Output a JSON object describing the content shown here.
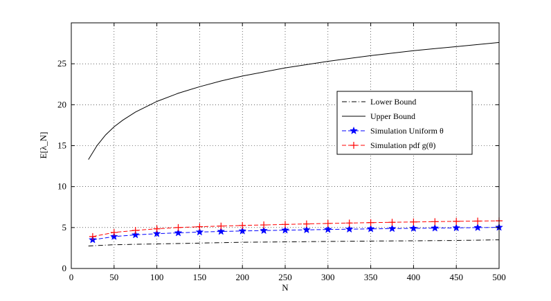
{
  "chart_data": {
    "type": "line",
    "xlabel": "N",
    "ylabel": "E[λ_N]",
    "xlim": [
      0,
      500
    ],
    "ylim": [
      0,
      30
    ],
    "grid": true,
    "legend_position": "right",
    "x_ticks": [
      0,
      50,
      100,
      150,
      200,
      250,
      300,
      350,
      400,
      450,
      500
    ],
    "y_ticks": [
      0,
      5,
      10,
      15,
      20,
      25
    ],
    "series": [
      {
        "name": "Lower Bound",
        "color": "#000000",
        "style": "dash-dot",
        "marker": "none",
        "x": [
          20,
          50,
          100,
          150,
          200,
          250,
          300,
          350,
          400,
          450,
          500
        ],
        "y": [
          2.75,
          2.9,
          3.0,
          3.1,
          3.2,
          3.25,
          3.3,
          3.35,
          3.38,
          3.42,
          3.5
        ]
      },
      {
        "name": "Upper Bound",
        "color": "#000000",
        "style": "solid",
        "marker": "none",
        "x": [
          20,
          30,
          40,
          50,
          60,
          75,
          100,
          125,
          150,
          175,
          200,
          250,
          300,
          350,
          400,
          450,
          500
        ],
        "y": [
          13.3,
          15.0,
          16.3,
          17.3,
          18.1,
          19.1,
          20.4,
          21.4,
          22.2,
          22.9,
          23.5,
          24.5,
          25.3,
          26.0,
          26.6,
          27.1,
          27.6
        ]
      },
      {
        "name": "Simulation Uniform θ",
        "color": "#0000ff",
        "style": "dashed",
        "marker": "star",
        "x": [
          25,
          50,
          75,
          100,
          125,
          150,
          175,
          200,
          225,
          250,
          275,
          300,
          325,
          350,
          375,
          400,
          425,
          450,
          475,
          500
        ],
        "y": [
          3.5,
          3.9,
          4.1,
          4.25,
          4.35,
          4.45,
          4.52,
          4.58,
          4.63,
          4.68,
          4.72,
          4.76,
          4.8,
          4.84,
          4.87,
          4.9,
          4.93,
          4.96,
          4.99,
          5.02
        ]
      },
      {
        "name": "Simulation pdf g(θ)",
        "color": "#ff0000",
        "style": "dashed",
        "marker": "plus",
        "x": [
          25,
          50,
          75,
          100,
          125,
          150,
          175,
          200,
          225,
          250,
          275,
          300,
          325,
          350,
          375,
          400,
          425,
          450,
          475,
          500
        ],
        "y": [
          3.9,
          4.4,
          4.65,
          4.85,
          5.0,
          5.1,
          5.18,
          5.25,
          5.32,
          5.38,
          5.44,
          5.5,
          5.55,
          5.6,
          5.64,
          5.68,
          5.72,
          5.76,
          5.79,
          5.82
        ]
      }
    ]
  }
}
